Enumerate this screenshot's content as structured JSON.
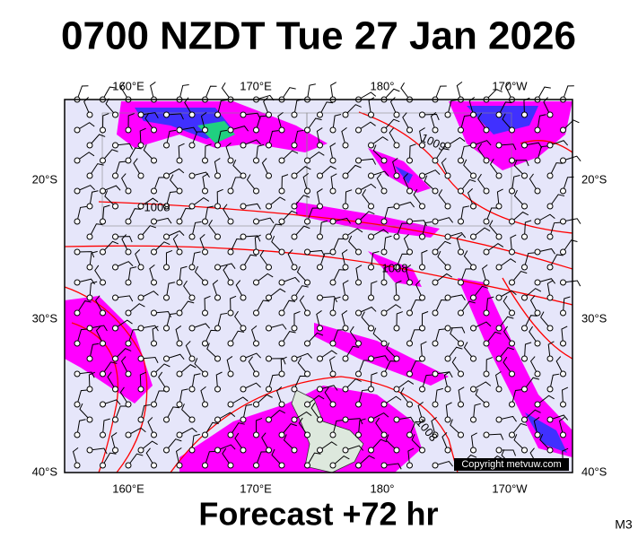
{
  "header": {
    "title": "0700 NZDT Tue 27 Jan 2026"
  },
  "map": {
    "lon_labels": [
      "160°E",
      "170°E",
      "180°",
      "170°W"
    ],
    "lat_labels": [
      "20°S",
      "30°S",
      "40°S"
    ],
    "isobar_labels": [
      "1009",
      "1008",
      "1008",
      "1008"
    ],
    "copyright": "Copyright metvuw.com"
  },
  "footer": {
    "forecast": "Forecast +72 hr",
    "model": "M3"
  }
}
